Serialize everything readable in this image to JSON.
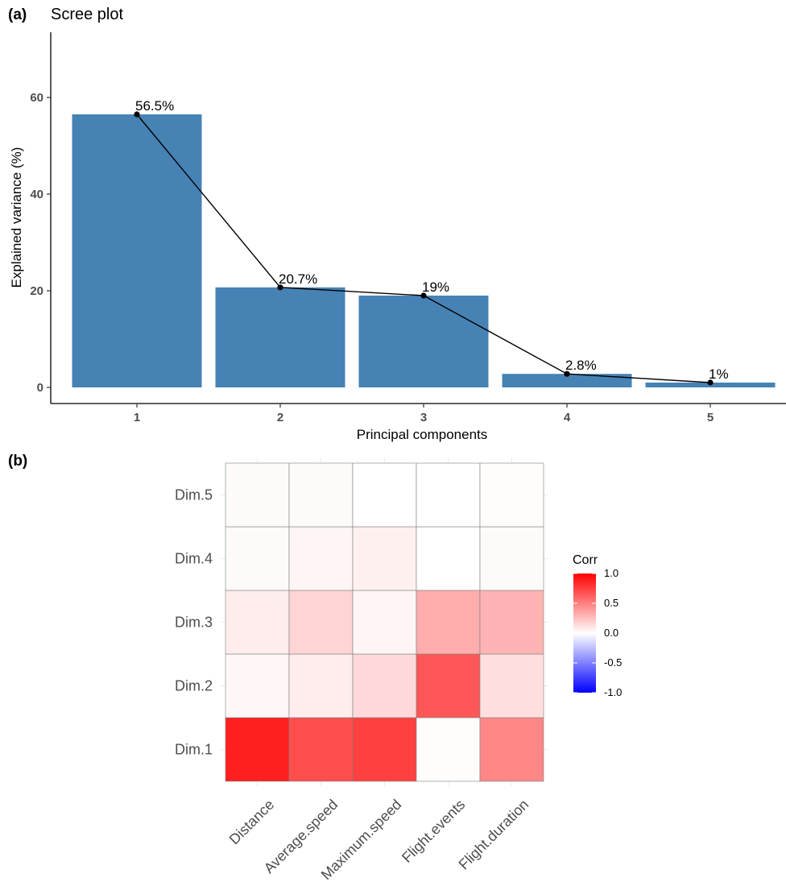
{
  "panels": {
    "a": {
      "tag": "(a)",
      "title": "Scree plot",
      "xlabel": "Principal components",
      "ylabel": "Explained variance (%)"
    },
    "b": {
      "tag": "(b)",
      "legend_title": "Corr"
    }
  },
  "chart_data": [
    {
      "type": "bar",
      "title": "Scree plot",
      "xlabel": "Principal components",
      "ylabel": "Explained variance (%)",
      "categories": [
        "1",
        "2",
        "3",
        "4",
        "5"
      ],
      "values": [
        56.5,
        20.7,
        19,
        2.8,
        1
      ],
      "data_labels": [
        "56.5%",
        "20.7%",
        "19%",
        "2.8%",
        "1%"
      ],
      "ylim": [
        0,
        70
      ],
      "yticks": [
        0,
        20,
        40,
        60
      ],
      "overlay": "line with points",
      "bar_color": "#4682B4",
      "grid": false
    },
    {
      "type": "heatmap",
      "x": [
        "Distance",
        "Average.speed",
        "Maximum.speed",
        "Flight.events",
        "Flight.duration"
      ],
      "y": [
        "Dim.1",
        "Dim.2",
        "Dim.3",
        "Dim.4",
        "Dim.5"
      ],
      "values": [
        [
          0.88,
          0.7,
          0.75,
          0.01,
          0.47
        ],
        [
          0.03,
          0.07,
          0.15,
          0.66,
          0.13
        ],
        [
          0.07,
          0.17,
          0.04,
          0.32,
          0.3
        ],
        [
          0.02,
          0.04,
          0.06,
          0.0,
          0.02
        ],
        [
          0.02,
          0.02,
          0.0,
          0.0,
          0.01
        ]
      ],
      "legend": {
        "title": "Corr",
        "ticks": [
          "1.0",
          "0.5",
          "0.0",
          "-0.5",
          "-1.0"
        ],
        "range": [
          -1,
          1
        ],
        "placement": "right"
      },
      "colors": {
        "high": "#FF0000",
        "mid": "#FFFFFF",
        "low": "#0000FF"
      }
    }
  ]
}
